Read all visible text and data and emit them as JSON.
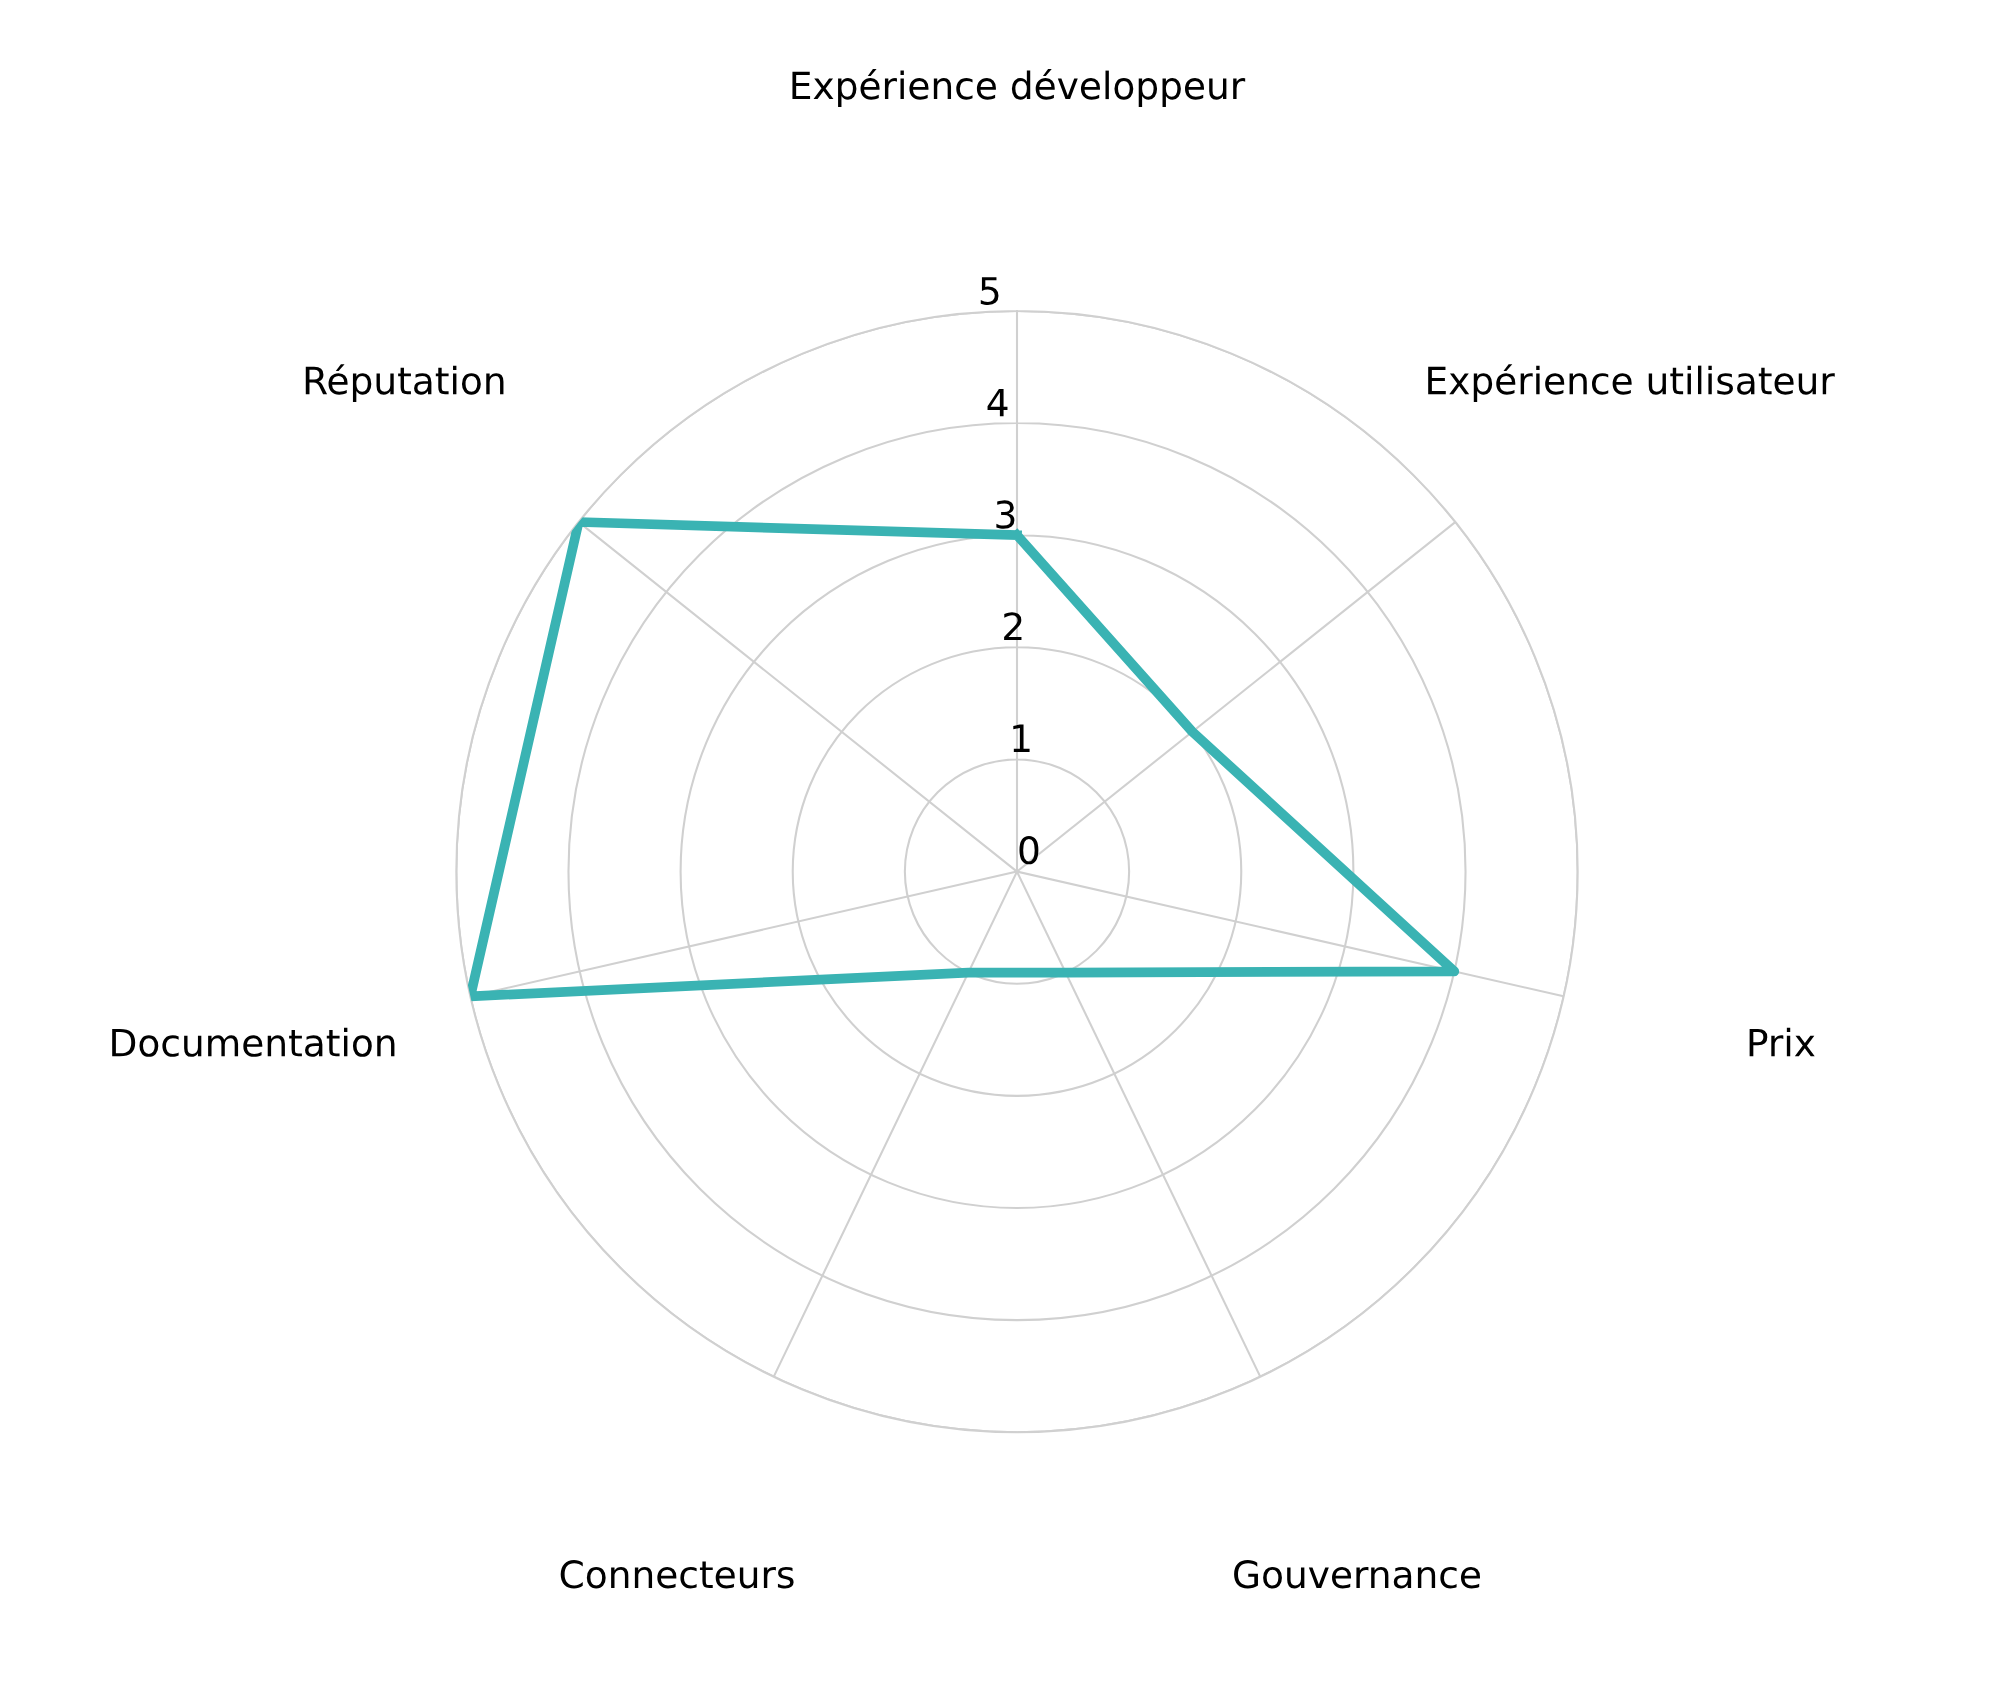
{
  "chart_data": {
    "type": "radar",
    "categories": [
      "Expérience développeur",
      "Expérience utilisateur",
      "Prix",
      "Gouvernance",
      "Connecteurs",
      "Documentation",
      "Réputation"
    ],
    "series": [
      {
        "color": "#3ab3b3",
        "values": [
          3,
          2,
          4,
          1,
          1,
          5,
          5
        ]
      }
    ],
    "ylim": [
      0,
      5
    ],
    "yticks": [
      0,
      1,
      2,
      3,
      4,
      5
    ],
    "grid": true,
    "marker": "none",
    "line_style": "solid"
  }
}
